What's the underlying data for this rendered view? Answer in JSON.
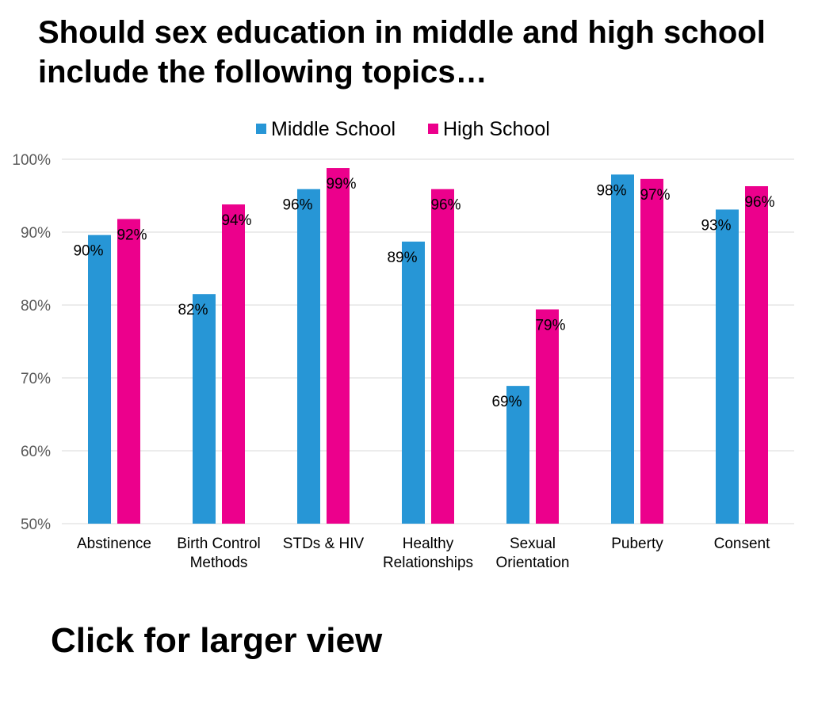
{
  "page": {
    "title": "Should sex education in middle and high school\ninclude the following topics…",
    "link_label": "Click for larger view"
  },
  "chart_data": {
    "type": "bar",
    "title": "Should sex education in middle and high school include the following topics…",
    "categories": [
      "Abstinence",
      "Birth Control\nMethods",
      "STDs & HIV",
      "Healthy\nRelationships",
      "Sexual\nOrientation",
      "Puberty",
      "Consent"
    ],
    "series": [
      {
        "name": "Middle School",
        "color": "#2796d6",
        "values": [
          90,
          82,
          96,
          89,
          69,
          98,
          93
        ],
        "actual": [
          89.6,
          81.5,
          95.9,
          88.7,
          68.9,
          97.9,
          93.1
        ]
      },
      {
        "name": "High School",
        "color": "#ec008c",
        "values": [
          92,
          94,
          99,
          96,
          79,
          97,
          96
        ],
        "actual": [
          91.8,
          93.8,
          98.8,
          95.9,
          79.4,
          97.3,
          96.3
        ]
      }
    ],
    "ylim": [
      50,
      100
    ],
    "yticks": [
      "50%",
      "60%",
      "70%",
      "80%",
      "90%",
      "100%"
    ],
    "ytick_values": [
      50,
      60,
      70,
      80,
      90,
      100
    ],
    "value_suffix": "%",
    "legend_position": "top",
    "grid": true,
    "colors": {
      "gridline": "#d9d9d9",
      "axis_text": "#595959"
    }
  }
}
